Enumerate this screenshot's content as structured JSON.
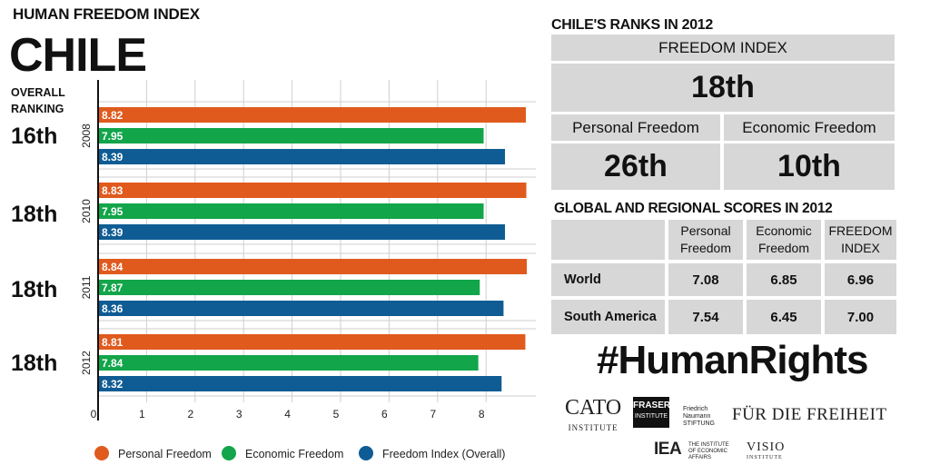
{
  "header": {
    "title": "HUMAN FREEDOM INDEX",
    "country": "CHILE",
    "overall_ranking_label": "OVERALL RANKING"
  },
  "chart_data": {
    "type": "bar",
    "orientation": "horizontal",
    "categories": [
      "2008",
      "2010",
      "2011",
      "2012"
    ],
    "overall_ranks": [
      "16th",
      "18th",
      "18th",
      "18th"
    ],
    "series": [
      {
        "name": "Personal Freedom",
        "color": "#e05a1e",
        "values": [
          8.82,
          8.83,
          8.84,
          8.81
        ]
      },
      {
        "name": "Economic Freedom",
        "color": "#12a54a",
        "values": [
          7.95,
          7.95,
          7.87,
          7.84
        ]
      },
      {
        "name": "Freedom Index (Overall)",
        "color": "#0f5c94",
        "values": [
          8.39,
          8.39,
          8.36,
          8.32
        ]
      }
    ],
    "xlim": [
      0,
      8.8
    ],
    "xticks": [
      "0",
      "1",
      "2",
      "3",
      "4",
      "5",
      "6",
      "7",
      "8"
    ],
    "grid": true,
    "legend_position": "bottom"
  },
  "ranks_2012": {
    "title": "CHILE'S RANKS IN 2012",
    "freedom_index_label": "FREEDOM INDEX",
    "freedom_index_rank": "18th",
    "personal_label": "Personal Freedom",
    "personal_rank": "26th",
    "economic_label": "Economic Freedom",
    "economic_rank": "10th"
  },
  "scores_2012": {
    "title": "GLOBAL AND REGIONAL SCORES IN 2012",
    "columns": [
      "Personal Freedom",
      "Economic Freedom",
      "FREEDOM INDEX"
    ],
    "rows": [
      {
        "label": "World",
        "values": [
          "7.08",
          "6.85",
          "6.96"
        ]
      },
      {
        "label": "South America",
        "values": [
          "7.54",
          "6.45",
          "7.00"
        ]
      }
    ]
  },
  "hashtag": "#HumanRights",
  "logos": {
    "cato": "CATO",
    "cato_sub": "INSTITUTE",
    "fraser": "FRASER",
    "fraser_sub": "INSTITUTE",
    "fnst_small": "Friedrich Naumann STIFTUNG",
    "fnst": "FÜR DIE FREIHEIT",
    "iea": "IEA",
    "iea_sub": "THE INSTITUTE OF ECONOMIC AFFAIRS",
    "visio": "VISIO",
    "visio_sub": "INSTITUTE"
  }
}
